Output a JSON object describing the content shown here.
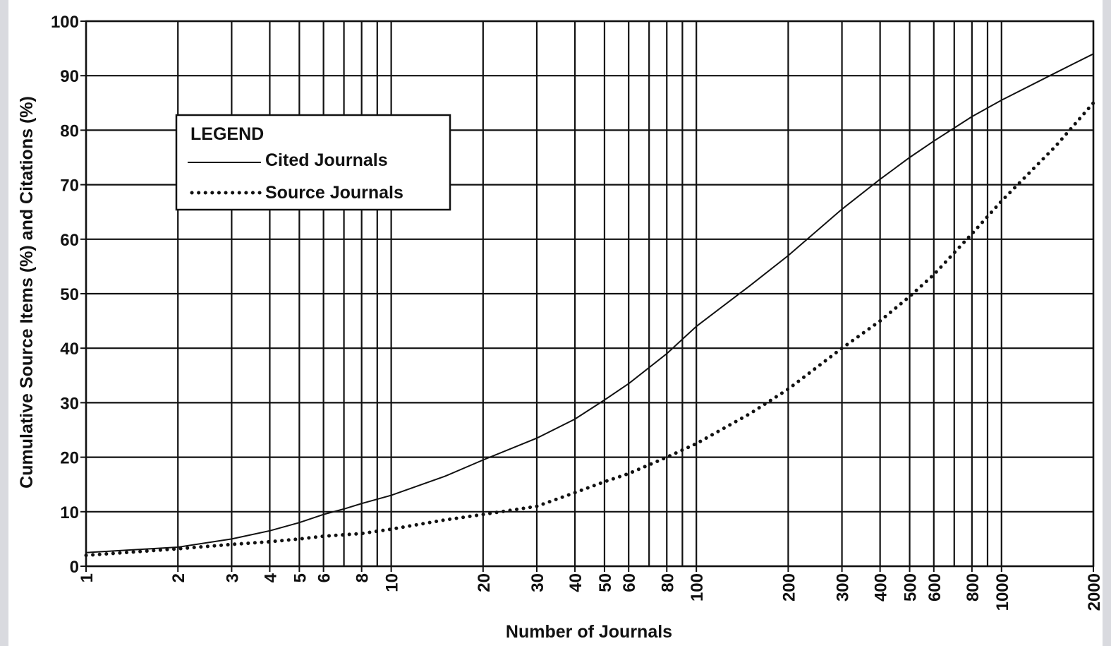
{
  "chart_data": {
    "type": "line",
    "x_scale": "log",
    "xlabel": "Number of Journals",
    "ylabel": "Cumulative Source Items (%) and Citations (%)",
    "xlim": [
      1,
      2000
    ],
    "ylim": [
      0,
      100
    ],
    "grid": true,
    "x_ticks": [
      1,
      2,
      3,
      4,
      5,
      6,
      8,
      10,
      20,
      30,
      40,
      50,
      60,
      80,
      100,
      200,
      300,
      400,
      500,
      600,
      800,
      1000,
      2000
    ],
    "x_grid_extra": [
      7,
      9,
      70,
      90,
      700,
      900
    ],
    "y_ticks": [
      0,
      10,
      20,
      30,
      40,
      50,
      60,
      70,
      80,
      90,
      100
    ],
    "legend": {
      "title": "LEGEND",
      "placement": "upper-left"
    },
    "series": [
      {
        "name": "Cited Journals",
        "style": "solid",
        "x": [
          1,
          2,
          3,
          4,
          5,
          6,
          7,
          8,
          10,
          15,
          20,
          30,
          40,
          50,
          60,
          80,
          100,
          150,
          200,
          300,
          400,
          500,
          600,
          800,
          1000,
          1500,
          2000
        ],
        "y": [
          2.5,
          3.5,
          5,
          6.5,
          8,
          9.5,
          10.5,
          11.5,
          13,
          16.5,
          19.5,
          23.5,
          27,
          30.5,
          33.5,
          39,
          44,
          51.5,
          57,
          65.5,
          71,
          75,
          78,
          82.5,
          85.5,
          90.5,
          94
        ]
      },
      {
        "name": "Source Journals",
        "style": "dotted",
        "x": [
          1,
          2,
          3,
          4,
          5,
          6,
          8,
          10,
          15,
          20,
          30,
          40,
          50,
          60,
          80,
          100,
          150,
          200,
          300,
          400,
          500,
          600,
          800,
          1000,
          1500,
          2000
        ],
        "y": [
          2,
          3.2,
          4,
          4.5,
          5,
          5.5,
          6,
          6.8,
          8.5,
          9.5,
          11,
          13.5,
          15.5,
          17,
          20,
          22.5,
          28,
          32.5,
          40,
          45,
          49.5,
          53.5,
          61,
          67,
          77,
          85
        ]
      }
    ]
  }
}
